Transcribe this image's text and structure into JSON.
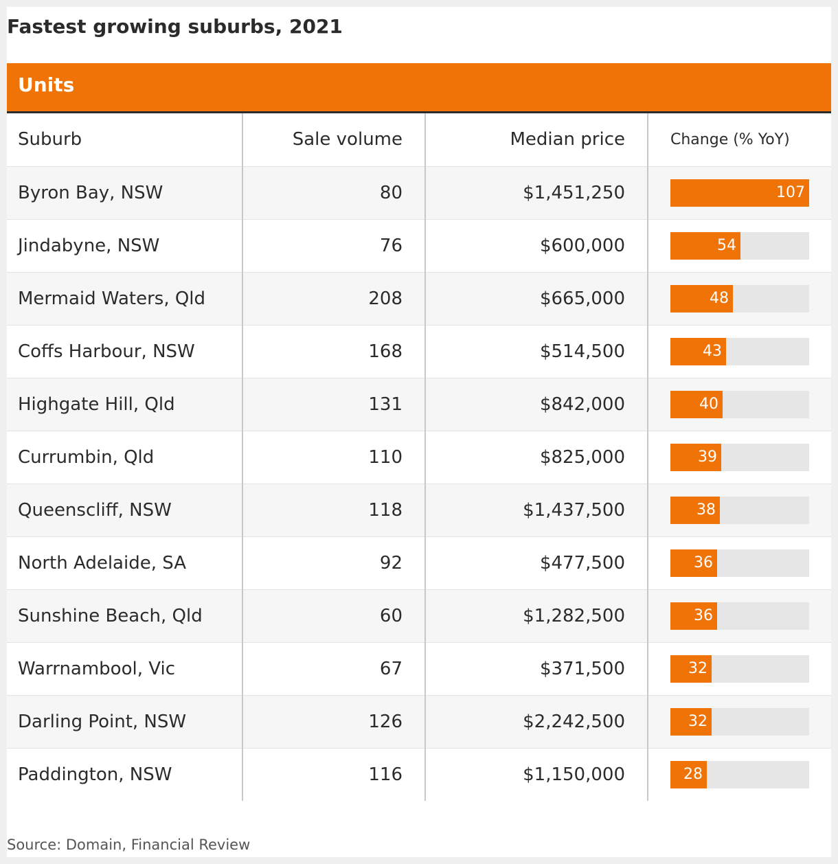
{
  "title": "Fastest growing suburbs, 2021",
  "section_label": "Units",
  "source": "Source: Domain, Financial Review",
  "colors": {
    "accent": "#f07307",
    "bar_track": "#e6e6e6",
    "text": "#2b2b2b"
  },
  "chart_data": {
    "type": "table",
    "title": "Fastest growing suburbs, 2021",
    "subtitle": "Units",
    "columns": [
      "Suburb",
      "Sale volume",
      "Median price",
      "Change (% YoY)"
    ],
    "bar_max": 107,
    "rows": [
      {
        "suburb": "Byron Bay, NSW",
        "volume": "80",
        "price": "$1,451,250",
        "change": 107
      },
      {
        "suburb": "Jindabyne, NSW",
        "volume": "76",
        "price": "$600,000",
        "change": 54
      },
      {
        "suburb": "Mermaid Waters, Qld",
        "volume": "208",
        "price": "$665,000",
        "change": 48
      },
      {
        "suburb": "Coffs Harbour, NSW",
        "volume": "168",
        "price": "$514,500",
        "change": 43
      },
      {
        "suburb": "Highgate Hill, Qld",
        "volume": "131",
        "price": "$842,000",
        "change": 40
      },
      {
        "suburb": "Currumbin, Qld",
        "volume": "110",
        "price": "$825,000",
        "change": 39
      },
      {
        "suburb": "Queenscliff, NSW",
        "volume": "118",
        "price": "$1,437,500",
        "change": 38
      },
      {
        "suburb": "North Adelaide, SA",
        "volume": "92",
        "price": "$477,500",
        "change": 36
      },
      {
        "suburb": "Sunshine Beach, Qld",
        "volume": "60",
        "price": "$1,282,500",
        "change": 36
      },
      {
        "suburb": "Warrnambool, Vic",
        "volume": "67",
        "price": "$371,500",
        "change": 32
      },
      {
        "suburb": "Darling Point, NSW",
        "volume": "126",
        "price": "$2,242,500",
        "change": 32
      },
      {
        "suburb": "Paddington, NSW",
        "volume": "116",
        "price": "$1,150,000",
        "change": 28
      }
    ]
  }
}
